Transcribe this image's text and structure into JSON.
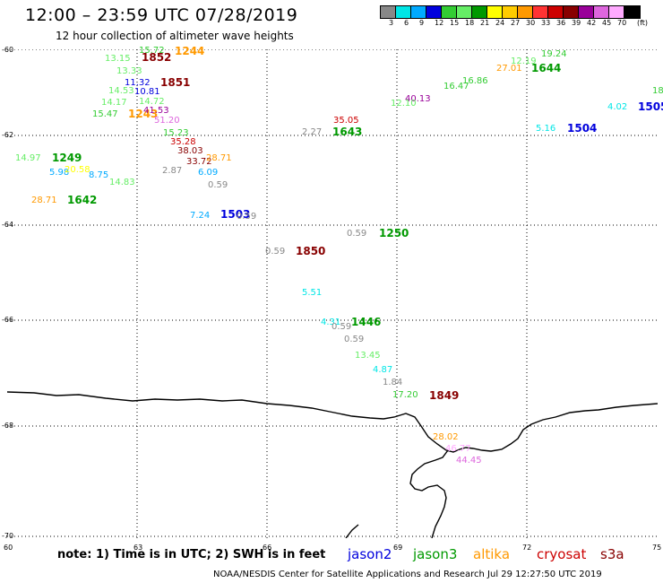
{
  "title": "12:00 – 23:59 UTC 07/28/2019",
  "subtitle": "12 hour collection of altimeter wave heights",
  "legend": {
    "units": "(ft)",
    "labels": [
      "3",
      "6",
      "9",
      "12",
      "15",
      "18",
      "21",
      "24",
      "27",
      "30",
      "33",
      "36",
      "39",
      "42",
      "45",
      "70"
    ],
    "colors": [
      "#888888",
      "#00e6e6",
      "#00aaff",
      "#0000dd",
      "#33cc33",
      "#66ee66",
      "#009900",
      "#ffff00",
      "#ffcc00",
      "#ff9900",
      "#ff3333",
      "#cc0000",
      "#880000",
      "#990099",
      "#dd66dd",
      "#ffaaff",
      "#000000"
    ]
  },
  "axes": {
    "lat_labels": [
      "-60",
      "-62",
      "-64",
      "-66",
      "-68",
      "-70"
    ],
    "lon_labels": [
      "60",
      "63",
      "66",
      "69",
      "72",
      "75"
    ]
  },
  "observations": [
    {
      "text": "15.72",
      "color": "#33cc33"
    },
    {
      "text": "1244",
      "color": "#ff9900"
    },
    {
      "text": "13.15",
      "color": "#66ee66"
    },
    {
      "text": "1852",
      "color": "#880000"
    },
    {
      "text": "13.33",
      "color": "#66ee66"
    },
    {
      "text": "1851",
      "color": "#880000"
    },
    {
      "text": "11.32",
      "color": "#0000dd"
    },
    {
      "text": "10.81",
      "color": "#0000dd"
    },
    {
      "text": "14.53",
      "color": "#66ee66"
    },
    {
      "text": "14.72",
      "color": "#66ee66"
    },
    {
      "text": "14.17",
      "color": "#66ee66"
    },
    {
      "text": "15.47",
      "color": "#33cc33"
    },
    {
      "text": "1243",
      "color": "#ff9900"
    },
    {
      "text": "41.53",
      "color": "#990099"
    },
    {
      "text": "51.20",
      "color": "#dd66dd"
    },
    {
      "text": "15.23",
      "color": "#33cc33"
    },
    {
      "text": "35.28",
      "color": "#cc0000"
    },
    {
      "text": "38.03",
      "color": "#880000"
    },
    {
      "text": "33.72",
      "color": "#880000"
    },
    {
      "text": "28.71",
      "color": "#ff9900"
    },
    {
      "text": "14.97",
      "color": "#66ee66"
    },
    {
      "text": "1249",
      "color": "#009900"
    },
    {
      "text": "5.98",
      "color": "#00aaff"
    },
    {
      "text": "20.58",
      "color": "#ffff00"
    },
    {
      "text": "8.75",
      "color": "#00aaff"
    },
    {
      "text": "14.83",
      "color": "#66ee66"
    },
    {
      "text": "2.87",
      "color": "#888888"
    },
    {
      "text": "6.09",
      "color": "#00aaff"
    },
    {
      "text": "0.59",
      "color": "#888888"
    },
    {
      "text": "28.71",
      "color": "#ff9900"
    },
    {
      "text": "1642",
      "color": "#009900"
    },
    {
      "text": "7.24",
      "color": "#00aaff"
    },
    {
      "text": "1503",
      "color": "#0000dd"
    },
    {
      "text": "0.59",
      "color": "#888888"
    },
    {
      "text": "35.05",
      "color": "#cc0000"
    },
    {
      "text": "2.27",
      "color": "#888888"
    },
    {
      "text": "1643",
      "color": "#009900"
    },
    {
      "text": "0.59",
      "color": "#888888"
    },
    {
      "text": "1250",
      "color": "#009900"
    },
    {
      "text": "0.59",
      "color": "#888888"
    },
    {
      "text": "1850",
      "color": "#880000"
    },
    {
      "text": "5.51",
      "color": "#00e6e6"
    },
    {
      "text": "4.31",
      "color": "#00e6e6"
    },
    {
      "text": "1446",
      "color": "#009900"
    },
    {
      "text": "0.59",
      "color": "#888888"
    },
    {
      "text": "0.59",
      "color": "#888888"
    },
    {
      "text": "13.45",
      "color": "#66ee66"
    },
    {
      "text": "4.87",
      "color": "#00e6e6"
    },
    {
      "text": "1.84",
      "color": "#888888"
    },
    {
      "text": "17.20",
      "color": "#33cc33"
    },
    {
      "text": "1849",
      "color": "#880000"
    },
    {
      "text": "28.02",
      "color": "#ff9900"
    },
    {
      "text": "46.77",
      "color": "#ffaaff"
    },
    {
      "text": "44.45",
      "color": "#dd66dd"
    },
    {
      "text": "40.13",
      "color": "#990099"
    },
    {
      "text": "12.10",
      "color": "#66ee66"
    },
    {
      "text": "16.47",
      "color": "#33cc33"
    },
    {
      "text": "16.86",
      "color": "#33cc33"
    },
    {
      "text": "27.01",
      "color": "#ff9900"
    },
    {
      "text": "12.19",
      "color": "#66ee66"
    },
    {
      "text": "19.24",
      "color": "#33cc33"
    },
    {
      "text": "1644",
      "color": "#009900"
    },
    {
      "text": "5.16",
      "color": "#00e6e6"
    },
    {
      "text": "1504",
      "color": "#0000dd"
    },
    {
      "text": "4.02",
      "color": "#00e6e6"
    },
    {
      "text": "1505",
      "color": "#0000dd"
    },
    {
      "text": "18",
      "color": "#33cc33"
    }
  ],
  "footer": {
    "note": "note:  1) Time is in UTC;  2) SWH is in feet",
    "satellites": [
      {
        "name": "jason2",
        "color": "#0000dd"
      },
      {
        "name": "jason3",
        "color": "#009900"
      },
      {
        "name": "altika",
        "color": "#ff9900"
      },
      {
        "name": "cryosat",
        "color": "#cc0000"
      },
      {
        "name": "s3a",
        "color": "#880000"
      }
    ],
    "credit": "NOAA/NESDIS Center for Satellite Applications and Research    Jul 29 12:27:50 UTC 2019"
  }
}
